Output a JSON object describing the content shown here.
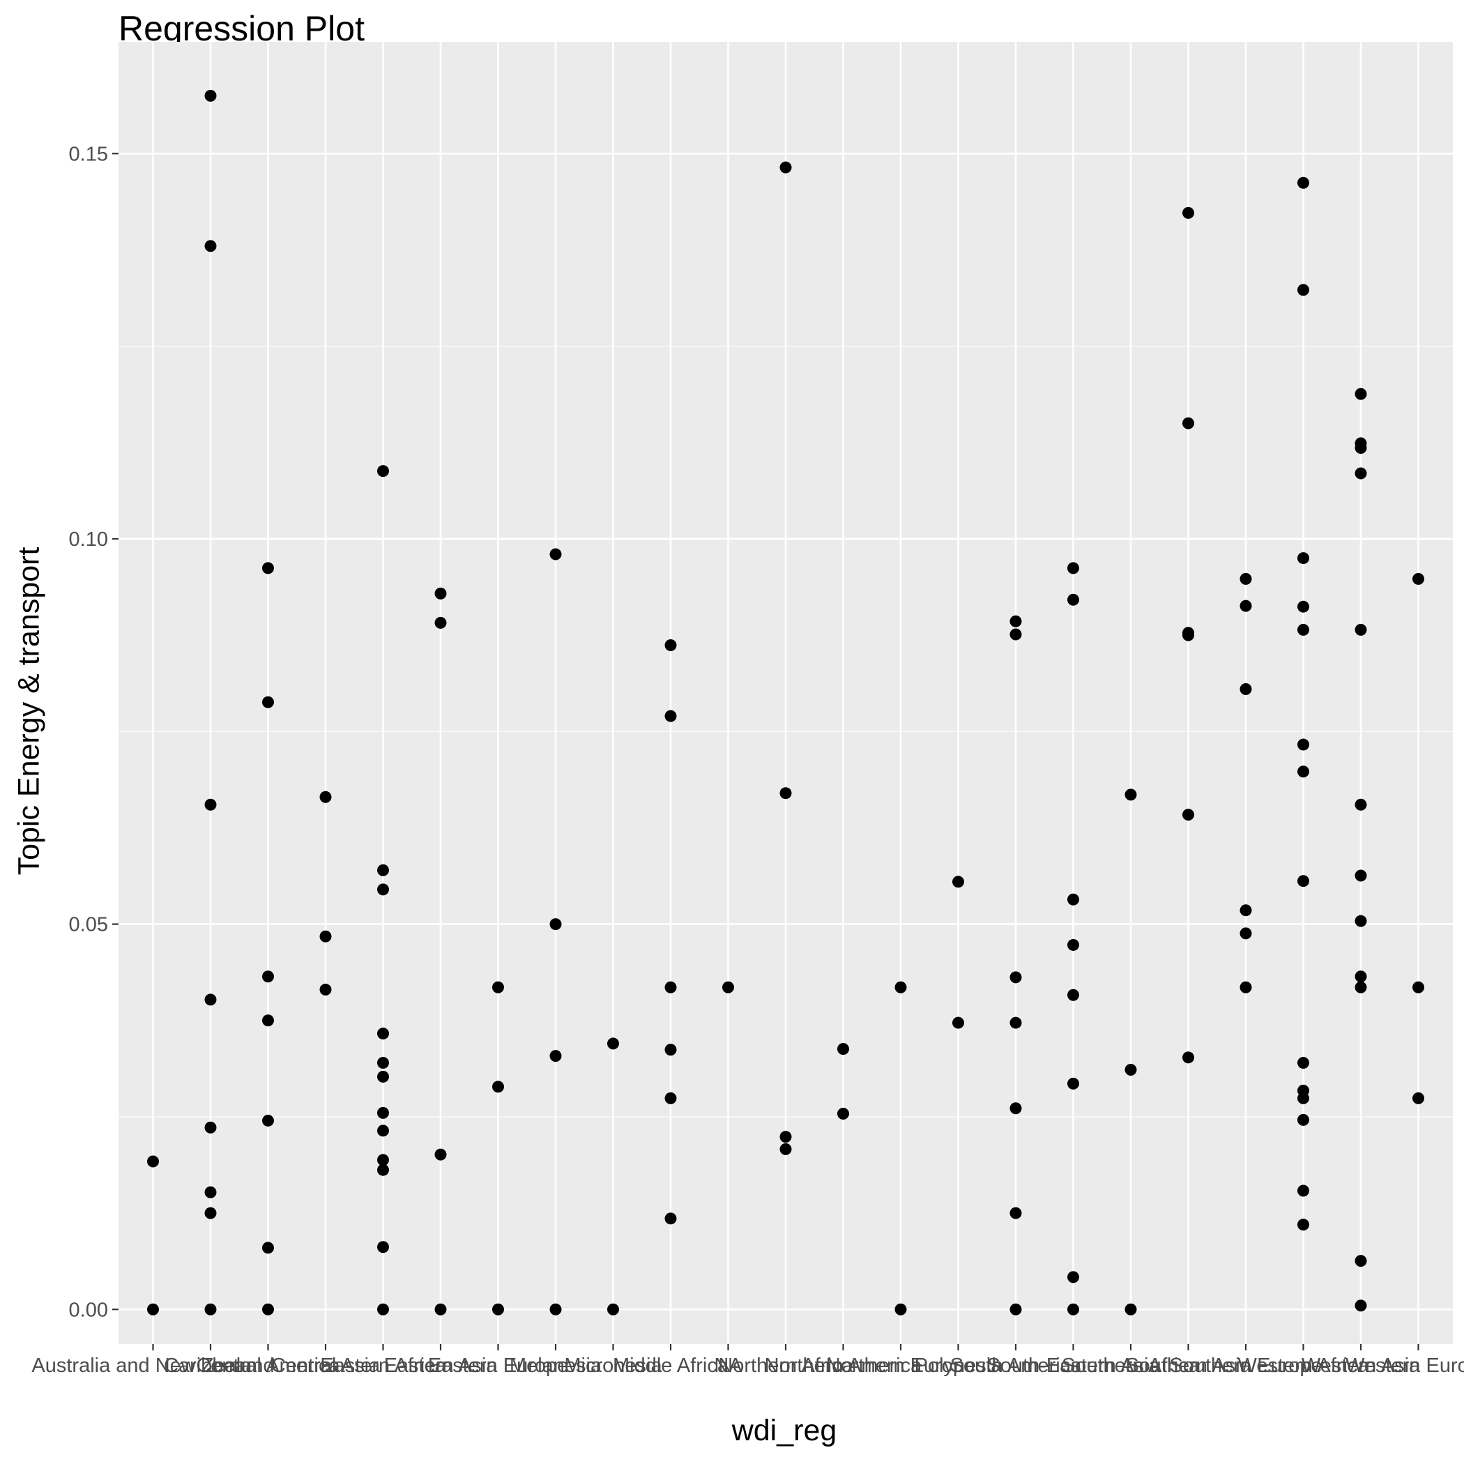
{
  "chart_data": {
    "type": "scatter",
    "title": "Regression Plot",
    "xlabel": "wdi_reg",
    "ylabel": "Topic Energy & transport",
    "ylim": [
      -0.0045,
      0.1645
    ],
    "yticks": [
      0.0,
      0.05,
      0.1,
      0.15
    ],
    "ytick_labels": [
      "0.00",
      "0.05",
      "0.10",
      "0.15"
    ],
    "grid": true,
    "categories": [
      "Australia and New Zealand",
      "Caribbean",
      "Central America",
      "Central Asia",
      "Eastern Africa",
      "Eastern Asia",
      "Eastern Europe",
      "Melanesia",
      "Micronesia",
      "Middle Africa",
      "NA",
      "Northern Africa",
      "Northern America",
      "Northern Europe",
      "Polynesia",
      "South America",
      "South-Eastern Asia",
      "Southern Africa",
      "Southern Asia",
      "Southern Europe",
      "Western Africa",
      "Western Asia",
      "Western Europe"
    ],
    "points": [
      [
        "Australia and New Zealand",
        0.0192
      ],
      [
        "Australia and New Zealand",
        0.0
      ],
      [
        "Caribbean",
        0.1575
      ],
      [
        "Caribbean",
        0.138
      ],
      [
        "Caribbean",
        0.0655
      ],
      [
        "Caribbean",
        0.0402
      ],
      [
        "Caribbean",
        0.0236
      ],
      [
        "Caribbean",
        0.0152
      ],
      [
        "Caribbean",
        0.0125
      ],
      [
        "Caribbean",
        0.0
      ],
      [
        "Central America",
        0.0962
      ],
      [
        "Central America",
        0.0788
      ],
      [
        "Central America",
        0.0432
      ],
      [
        "Central America",
        0.0375
      ],
      [
        "Central America",
        0.0245
      ],
      [
        "Central America",
        0.008
      ],
      [
        "Central America",
        0.0
      ],
      [
        "Central Asia",
        0.0665
      ],
      [
        "Central Asia",
        0.0484
      ],
      [
        "Central Asia",
        0.0415
      ],
      [
        "Eastern Africa",
        0.1088
      ],
      [
        "Eastern Africa",
        0.057
      ],
      [
        "Eastern Africa",
        0.0545
      ],
      [
        "Eastern Africa",
        0.0358
      ],
      [
        "Eastern Africa",
        0.032
      ],
      [
        "Eastern Africa",
        0.0302
      ],
      [
        "Eastern Africa",
        0.0255
      ],
      [
        "Eastern Africa",
        0.0232
      ],
      [
        "Eastern Africa",
        0.0194
      ],
      [
        "Eastern Africa",
        0.0181
      ],
      [
        "Eastern Africa",
        0.0081
      ],
      [
        "Eastern Africa",
        0.0
      ],
      [
        "Eastern Asia",
        0.0929
      ],
      [
        "Eastern Asia",
        0.0891
      ],
      [
        "Eastern Asia",
        0.0201
      ],
      [
        "Eastern Asia",
        0.0
      ],
      [
        "Eastern Europe",
        0.0418
      ],
      [
        "Eastern Europe",
        0.0289
      ],
      [
        "Eastern Europe",
        0.0
      ],
      [
        "Melanesia",
        0.098
      ],
      [
        "Melanesia",
        0.05
      ],
      [
        "Melanesia",
        0.0329
      ],
      [
        "Melanesia",
        0.0
      ],
      [
        "Micronesia",
        0.0345
      ],
      [
        "Micronesia",
        0.0
      ],
      [
        "Middle Africa",
        0.0862
      ],
      [
        "Middle Africa",
        0.077
      ],
      [
        "Middle Africa",
        0.0418
      ],
      [
        "Middle Africa",
        0.0337
      ],
      [
        "Middle Africa",
        0.0274
      ],
      [
        "Middle Africa",
        0.0118
      ],
      [
        "NA",
        0.0418
      ],
      [
        "Northern Africa",
        0.1482
      ],
      [
        "Northern Africa",
        0.067
      ],
      [
        "Northern Africa",
        0.0224
      ],
      [
        "Northern Africa",
        0.0208
      ],
      [
        "Northern America",
        0.0338
      ],
      [
        "Northern America",
        0.0254
      ],
      [
        "Northern Europe",
        0.0418
      ],
      [
        "Northern Europe",
        0.0
      ],
      [
        "Polynesia",
        0.0555
      ],
      [
        "Polynesia",
        0.0372
      ],
      [
        "South America",
        0.0893
      ],
      [
        "South America",
        0.0876
      ],
      [
        "South America",
        0.0431
      ],
      [
        "South America",
        0.0372
      ],
      [
        "South America",
        0.0261
      ],
      [
        "South America",
        0.0125
      ],
      [
        "South America",
        0.0
      ],
      [
        "South-Eastern Asia",
        0.0962
      ],
      [
        "South-Eastern Asia",
        0.0921
      ],
      [
        "South-Eastern Asia",
        0.0532
      ],
      [
        "South-Eastern Asia",
        0.0473
      ],
      [
        "South-Eastern Asia",
        0.0408
      ],
      [
        "South-Eastern Asia",
        0.0293
      ],
      [
        "South-Eastern Asia",
        0.0042
      ],
      [
        "South-Eastern Asia",
        0.0
      ],
      [
        "Southern Africa",
        0.0668
      ],
      [
        "Southern Africa",
        0.0311
      ],
      [
        "Southern Africa",
        0.0
      ],
      [
        "Southern Asia",
        0.1423
      ],
      [
        "Southern Asia",
        0.115
      ],
      [
        "Southern Asia",
        0.0878
      ],
      [
        "Southern Asia",
        0.0875
      ],
      [
        "Southern Asia",
        0.0642
      ],
      [
        "Southern Asia",
        0.0327
      ],
      [
        "Southern Europe",
        0.0948
      ],
      [
        "Southern Europe",
        0.0913
      ],
      [
        "Southern Europe",
        0.0805
      ],
      [
        "Southern Europe",
        0.0518
      ],
      [
        "Southern Europe",
        0.0488
      ],
      [
        "Southern Europe",
        0.0418
      ],
      [
        "Western Africa",
        0.1462
      ],
      [
        "Western Africa",
        0.1323
      ],
      [
        "Western Africa",
        0.0975
      ],
      [
        "Western Africa",
        0.0912
      ],
      [
        "Western Africa",
        0.0882
      ],
      [
        "Western Africa",
        0.0733
      ],
      [
        "Western Africa",
        0.0698
      ],
      [
        "Western Africa",
        0.0556
      ],
      [
        "Western Africa",
        0.032
      ],
      [
        "Western Africa",
        0.0284
      ],
      [
        "Western Africa",
        0.0274
      ],
      [
        "Western Africa",
        0.0246
      ],
      [
        "Western Africa",
        0.0154
      ],
      [
        "Western Africa",
        0.011
      ],
      [
        "Western Asia",
        0.1188
      ],
      [
        "Western Asia",
        0.1124
      ],
      [
        "Western Asia",
        0.1118
      ],
      [
        "Western Asia",
        0.1085
      ],
      [
        "Western Asia",
        0.0882
      ],
      [
        "Western Asia",
        0.0655
      ],
      [
        "Western Asia",
        0.0563
      ],
      [
        "Western Asia",
        0.0504
      ],
      [
        "Western Asia",
        0.0432
      ],
      [
        "Western Asia",
        0.0418
      ],
      [
        "Western Asia",
        0.0063
      ],
      [
        "Western Asia",
        0.0005
      ],
      [
        "Western Europe",
        0.0948
      ],
      [
        "Western Europe",
        0.0418
      ],
      [
        "Western Europe",
        0.0274
      ]
    ],
    "colors": {
      "panel_background": "#ebebeb",
      "grid_major": "#ffffff",
      "grid_minor": "#f5f5f5",
      "point": "#000000",
      "tick_text": "#4d4d4d",
      "axis_tick": "#333333"
    }
  }
}
